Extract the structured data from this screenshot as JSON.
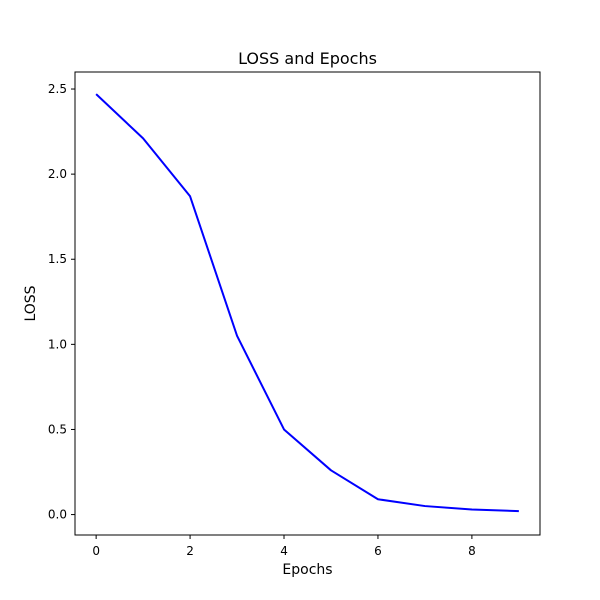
{
  "chart_data": {
    "type": "line",
    "title": "LOSS and Epochs",
    "xlabel": "Epochs",
    "ylabel": "LOSS",
    "x": [
      0,
      1,
      2,
      3,
      4,
      5,
      6,
      7,
      8,
      9
    ],
    "series": [
      {
        "values": [
          2.47,
          2.21,
          1.87,
          1.05,
          0.5,
          0.26,
          0.09,
          0.05,
          0.03,
          0.02
        ],
        "color": "#0000ff"
      }
    ],
    "xlim": [
      -0.45,
      9.45
    ],
    "ylim": [
      -0.12,
      2.6
    ],
    "xticks": [
      0,
      2,
      4,
      6,
      8
    ],
    "yticks": [
      0.0,
      0.5,
      1.0,
      1.5,
      2.0,
      2.5
    ],
    "xtick_labels": [
      "0",
      "2",
      "4",
      "6",
      "8"
    ],
    "ytick_labels": [
      "0.0",
      "0.5",
      "1.0",
      "1.5",
      "2.0",
      "2.5"
    ],
    "grid": false,
    "legend": false
  }
}
